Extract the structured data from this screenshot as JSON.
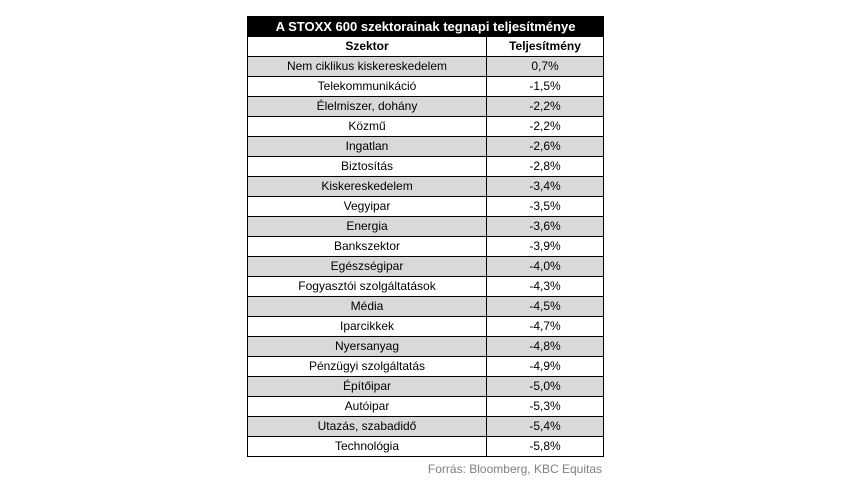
{
  "table": {
    "title": "A STOXX 600 szektorainak tegnapi teljesítménye",
    "headers": [
      "Szektor",
      "Teljesítmény"
    ],
    "rows": [
      {
        "sector": "Nem ciklikus kiskereskedelem",
        "value": "0,7%"
      },
      {
        "sector": "Telekommunikáció",
        "value": "-1,5%"
      },
      {
        "sector": "Élelmiszer, dohány",
        "value": "-2,2%"
      },
      {
        "sector": "Közmű",
        "value": "-2,2%"
      },
      {
        "sector": "Ingatlan",
        "value": "-2,6%"
      },
      {
        "sector": "Biztosítás",
        "value": "-2,8%"
      },
      {
        "sector": "Kiskereskedelem",
        "value": "-3,4%"
      },
      {
        "sector": "Vegyipar",
        "value": "-3,5%"
      },
      {
        "sector": "Energia",
        "value": "-3,6%"
      },
      {
        "sector": "Bankszektor",
        "value": "-3,9%"
      },
      {
        "sector": "Egészségipar",
        "value": "-4,0%"
      },
      {
        "sector": "Fogyasztói szolgáltatások",
        "value": "-4,3%"
      },
      {
        "sector": "Média",
        "value": "-4,5%"
      },
      {
        "sector": "Iparcikkek",
        "value": "-4,7%"
      },
      {
        "sector": "Nyersanyag",
        "value": "-4,8%"
      },
      {
        "sector": "Pénzügyi szolgáltatás",
        "value": "-4,9%"
      },
      {
        "sector": "Építőipar",
        "value": "-5,0%"
      },
      {
        "sector": "Autóipar",
        "value": "-5,3%"
      },
      {
        "sector": "Utazás, szabadidő",
        "value": "-5,4%"
      },
      {
        "sector": "Technológia",
        "value": "-5,8%"
      }
    ]
  },
  "source": "Forrás: Bloomberg, KBC Equitas",
  "colors": {
    "title_bg": "#000000",
    "stripe": "#d9d9d9",
    "source_text": "#7f7f7f"
  }
}
